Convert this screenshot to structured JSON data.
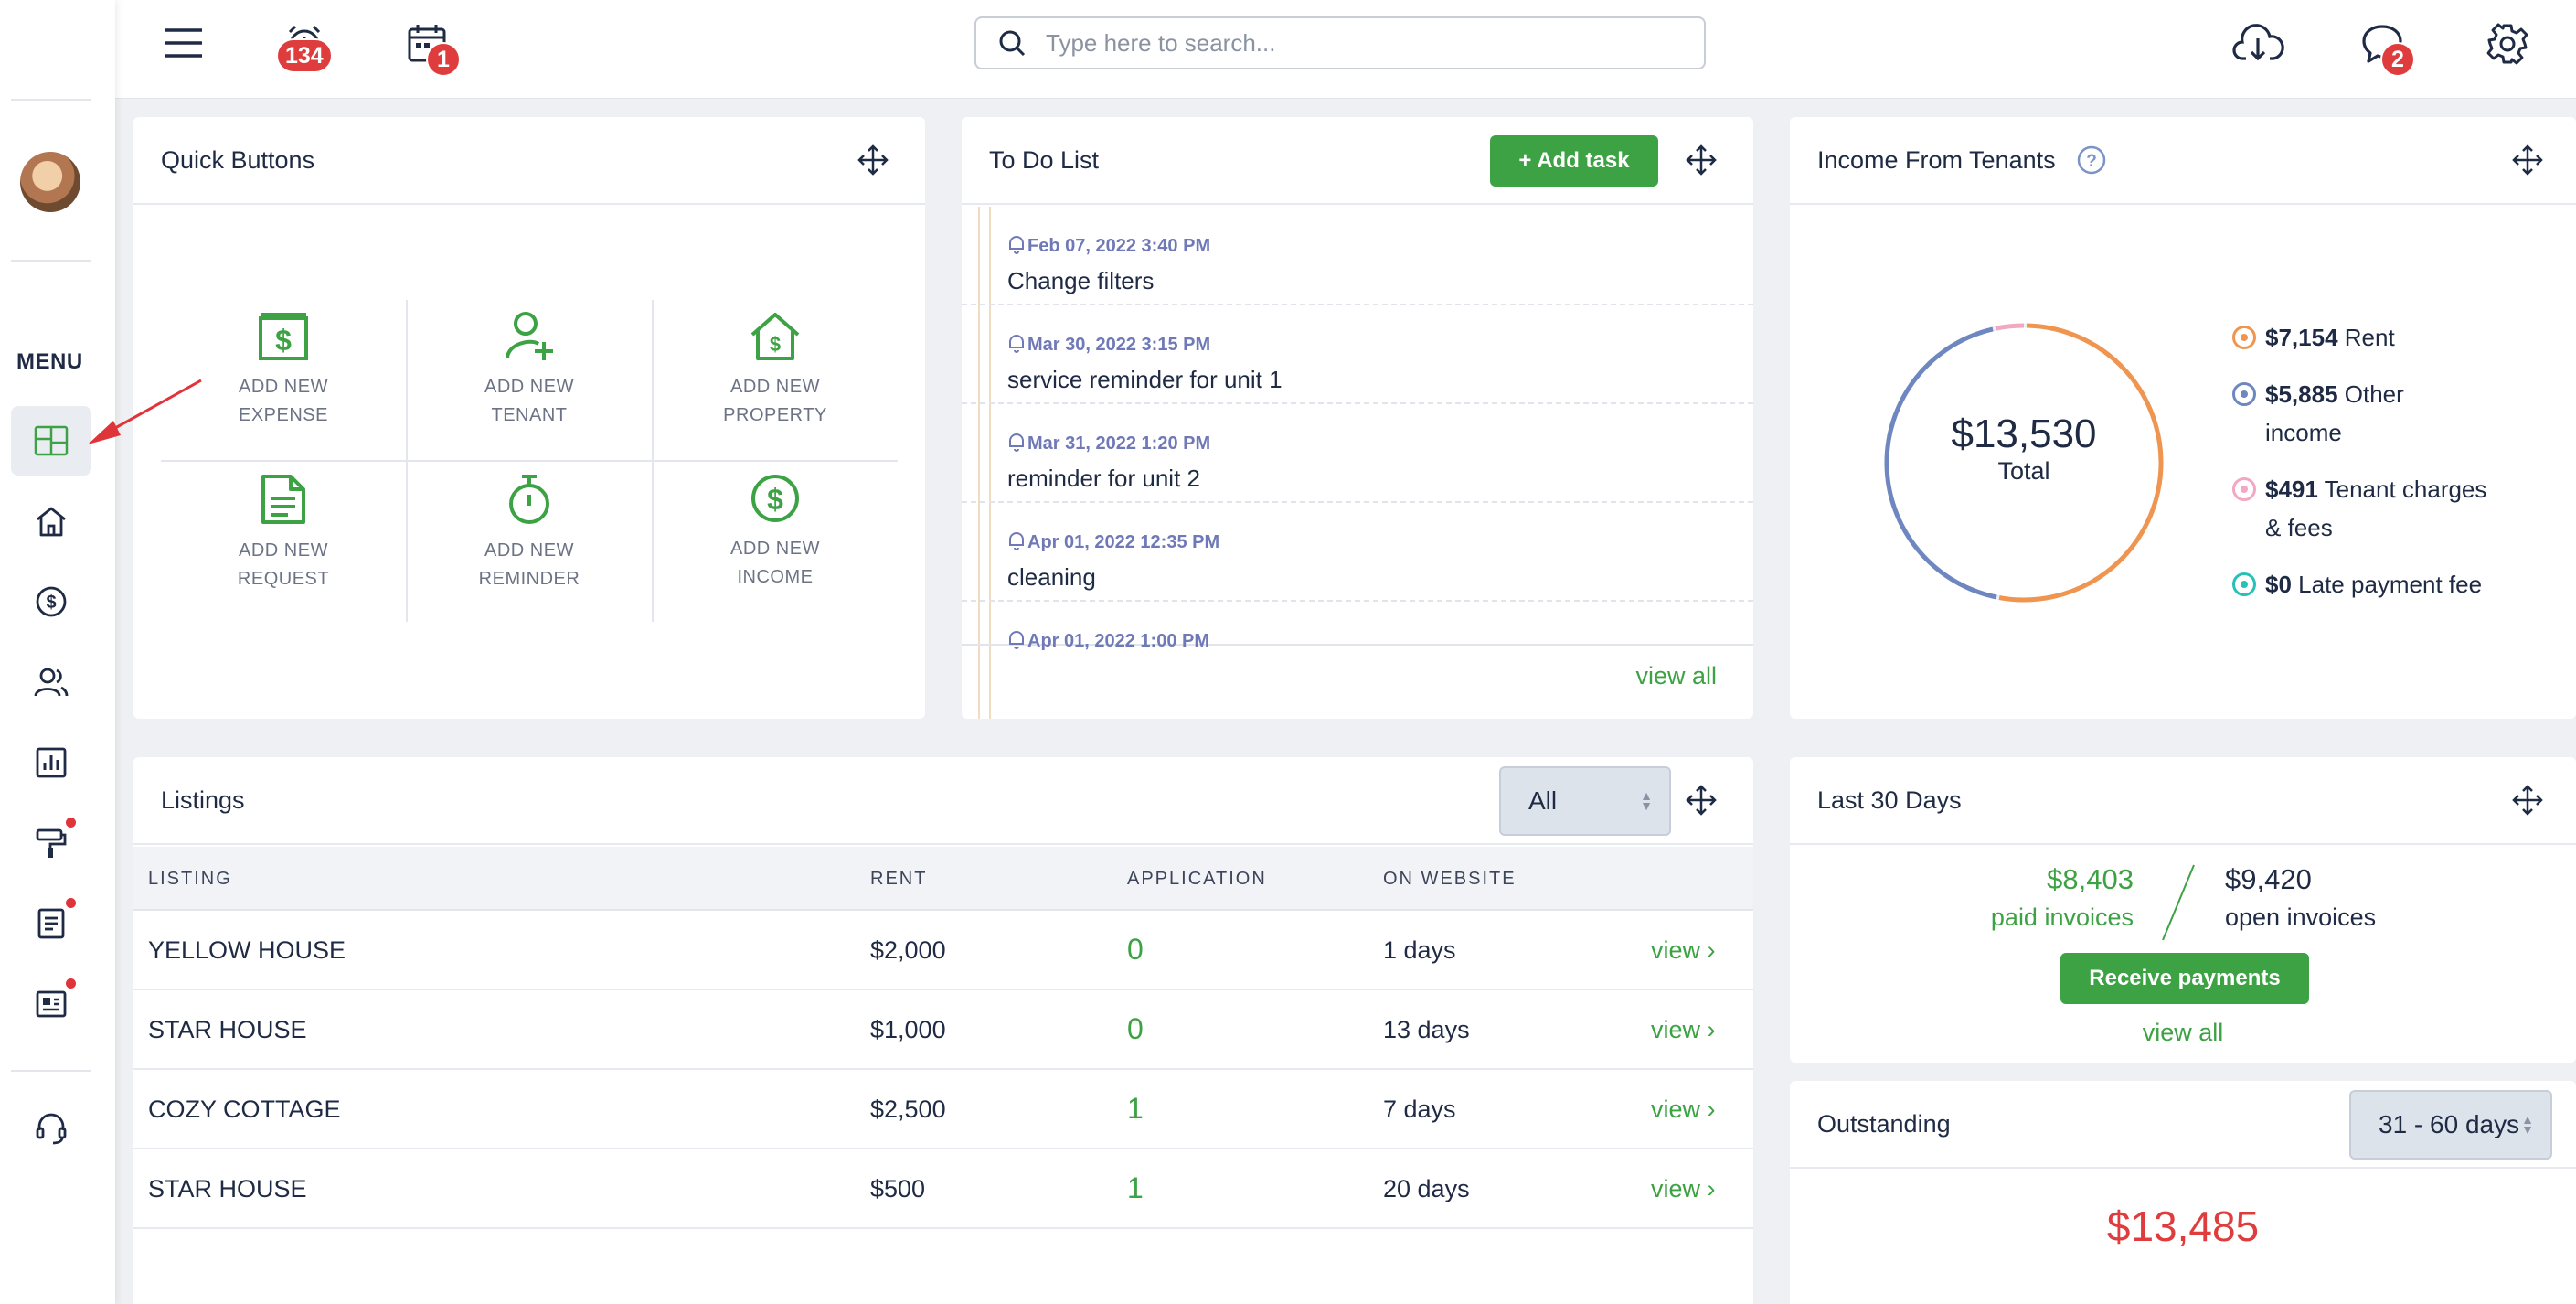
{
  "topbar": {
    "alarm_badge": "134",
    "calendar_badge": "1",
    "chat_badge": "2",
    "search_placeholder": "Type here to search..."
  },
  "sidebar": {
    "menu_label": "MENU",
    "items": [
      "dashboard-icon",
      "home-icon",
      "dollar-icon",
      "users-icon",
      "report-icon",
      "paint-roller-icon",
      "document-icon",
      "news-icon",
      "headset-icon"
    ]
  },
  "quick_buttons": {
    "title": "Quick Buttons",
    "items": [
      {
        "line1": "ADD NEW",
        "line2": "EXPENSE"
      },
      {
        "line1": "ADD NEW",
        "line2": "TENANT"
      },
      {
        "line1": "ADD NEW",
        "line2": "PROPERTY"
      },
      {
        "line1": "ADD NEW",
        "line2": "REQUEST"
      },
      {
        "line1": "ADD NEW",
        "line2": "REMINDER"
      },
      {
        "line1": "ADD NEW",
        "line2": "INCOME"
      }
    ]
  },
  "todo": {
    "title": "To Do List",
    "add_label": "+ Add task",
    "items": [
      {
        "date": "Feb 07, 2022 3:40 PM",
        "text": "Change filters"
      },
      {
        "date": "Mar 30, 2022 3:15 PM",
        "text": "service reminder for unit 1"
      },
      {
        "date": "Mar 31, 2022 1:20 PM",
        "text": "reminder for unit 2"
      },
      {
        "date": "Apr 01, 2022 12:35 PM",
        "text": "cleaning"
      },
      {
        "date": "Apr 01, 2022 1:00 PM",
        "text": ""
      }
    ],
    "view_all": "view all"
  },
  "income": {
    "title": "Income From Tenants",
    "total_value": "$13,530",
    "total_label": "Total",
    "legend": [
      {
        "amount": "$7,154",
        "label": "Rent",
        "value": 7154,
        "color": "#ef9550"
      },
      {
        "amount": "$5,885",
        "label": "Other",
        "label2": "income",
        "value": 5885,
        "color": "#6f87c0"
      },
      {
        "amount": "$491",
        "label": "Tenant charges",
        "label2": "& fees",
        "value": 491,
        "color": "#f3a7c2"
      },
      {
        "amount": "$0",
        "label": "Late payment fee",
        "value": 0,
        "color": "#27c1b8"
      }
    ]
  },
  "listings": {
    "title": "Listings",
    "filter_value": "All",
    "columns": [
      "LISTING",
      "RENT",
      "APPLICATION",
      "ON WEBSITE"
    ],
    "rows": [
      {
        "name": "YELLOW HOUSE",
        "rent": "$2,000",
        "applications": "0",
        "on_website": "1 days",
        "action": "view"
      },
      {
        "name": "STAR HOUSE",
        "rent": "$1,000",
        "applications": "0",
        "on_website": "13 days",
        "action": "view"
      },
      {
        "name": "COZY COTTAGE",
        "rent": "$2,500",
        "applications": "1",
        "on_website": "7 days",
        "action": "view"
      },
      {
        "name": "STAR HOUSE",
        "rent": "$500",
        "applications": "1",
        "on_website": "20 days",
        "action": "view"
      }
    ]
  },
  "last30": {
    "title": "Last 30 Days",
    "paid_value": "$8,403",
    "paid_label": "paid invoices",
    "open_value": "$9,420",
    "open_label": "open invoices",
    "button": "Receive payments",
    "view_all": "view all"
  },
  "outstanding": {
    "title": "Outstanding",
    "range": "31 - 60 days",
    "amount": "$13,485"
  },
  "colors": {
    "green": "#3da244",
    "red": "#df3d3d",
    "navy": "#1f2a44",
    "purple_date": "#6f79b8"
  }
}
